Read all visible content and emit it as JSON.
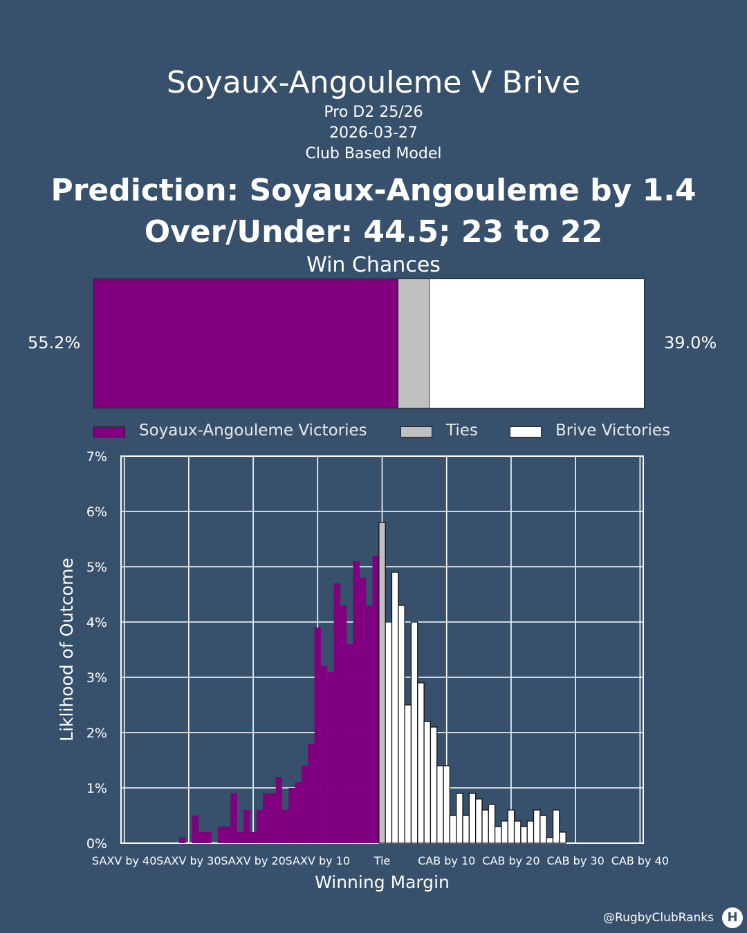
{
  "header": {
    "title": "Soyaux-Angouleme V Brive",
    "league": "Pro D2 25/26",
    "date": "2026-03-27",
    "model": "Club Based Model",
    "prediction": "Prediction: Soyaux-Angouleme by 1.4",
    "over_under": "Over/Under: 44.5; 23 to 22"
  },
  "win_chances": {
    "title": "Win Chances",
    "home_pct_label": "55.2%",
    "away_pct_label": "39.0%",
    "home": 55.2,
    "tie": 5.8,
    "away": 39.0
  },
  "legend": {
    "home": "Soyaux-Angouleme Victories",
    "tie": "Ties",
    "away": "Brive Victories"
  },
  "colors": {
    "background": "#37506b",
    "home": "#800080",
    "tie": "#c0c0c0",
    "away": "#ffffff",
    "grid": "#ffffff"
  },
  "footer": {
    "handle": "@RugbyClubRanks",
    "logo_text": "H"
  },
  "chart_data": {
    "type": "bar",
    "xlabel": "Winning Margin",
    "ylabel": "Liklihood of Outcome",
    "xlim": [
      -40,
      40
    ],
    "ylim": [
      0,
      7
    ],
    "yticks": [
      0,
      1,
      2,
      3,
      4,
      5,
      6,
      7
    ],
    "ytick_labels": [
      "0%",
      "1%",
      "2%",
      "3%",
      "4%",
      "5%",
      "6%",
      "7%"
    ],
    "xticks": [
      -40,
      -30,
      -20,
      -10,
      0,
      10,
      20,
      30,
      40
    ],
    "xtick_labels": [
      "SAXV by 40",
      "SAXV by 30",
      "SAXV by 20",
      "SAXV by 10",
      "Tie",
      "CAB by 10",
      "CAB by 20",
      "CAB by 30",
      "CAB by 40"
    ],
    "grid": true,
    "series": [
      {
        "name": "Soyaux-Angouleme Victories",
        "x": [
          -40,
          -39,
          -38,
          -37,
          -36,
          -35,
          -34,
          -33,
          -32,
          -31,
          -30,
          -29,
          -28,
          -27,
          -26,
          -25,
          -24,
          -23,
          -22,
          -21,
          -20,
          -19,
          -18,
          -17,
          -16,
          -15,
          -14,
          -13,
          -12,
          -11,
          -10,
          -9,
          -8,
          -7,
          -6,
          -5,
          -4,
          -3,
          -2,
          -1
        ],
        "values": [
          0,
          0,
          0,
          0,
          0,
          0,
          0,
          0,
          0,
          0.1,
          0,
          0.5,
          0.2,
          0.2,
          0,
          0.3,
          0.3,
          0.9,
          0.2,
          0.6,
          0.2,
          0.6,
          0.9,
          0.9,
          1.2,
          0.6,
          1.0,
          1.1,
          1.4,
          1.8,
          3.9,
          3.2,
          3.1,
          4.7,
          4.3,
          3.6,
          5.1,
          4.8,
          4.3,
          5.2
        ]
      },
      {
        "name": "Ties",
        "x": [
          0
        ],
        "values": [
          5.8
        ]
      },
      {
        "name": "Brive Victories",
        "x": [
          1,
          2,
          3,
          4,
          5,
          6,
          7,
          8,
          9,
          10,
          11,
          12,
          13,
          14,
          15,
          16,
          17,
          18,
          19,
          20,
          21,
          22,
          23,
          24,
          25,
          26,
          27,
          28,
          29,
          30
        ],
        "values": [
          4.0,
          4.9,
          4.3,
          2.5,
          4.0,
          2.9,
          2.2,
          2.1,
          1.4,
          1.4,
          0.5,
          0.9,
          0.5,
          0.9,
          0.8,
          0.6,
          0.7,
          0.3,
          0.4,
          0.6,
          0.4,
          0.3,
          0.4,
          0.6,
          0.5,
          0.1,
          0.6,
          0.2,
          0,
          0
        ]
      }
    ]
  }
}
